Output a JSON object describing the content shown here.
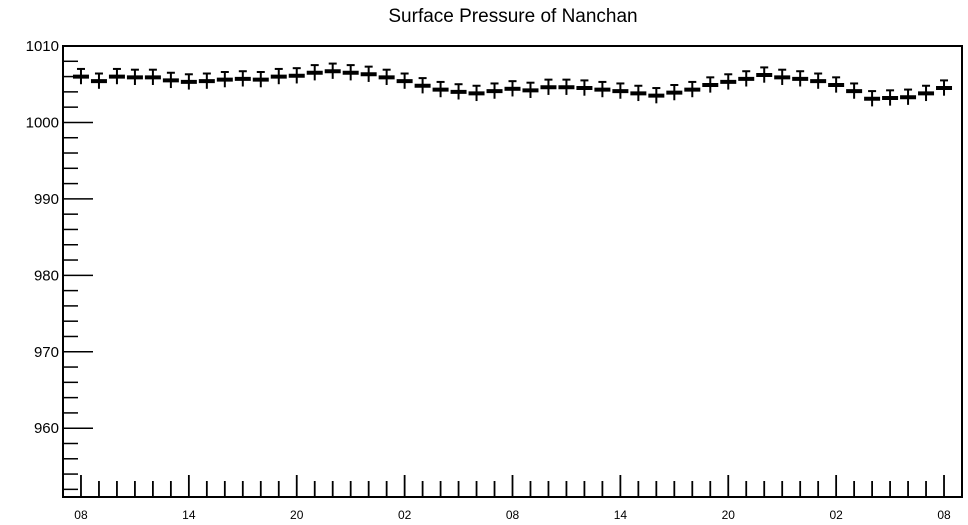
{
  "chart_data": {
    "type": "scatter",
    "title": "Surface Pressure of Nanchan",
    "xlabel": "",
    "ylabel": "",
    "ylim": [
      951,
      1010
    ],
    "yticks": [
      960,
      970,
      980,
      990,
      1000,
      1010
    ],
    "xtick_labels": [
      "08",
      "14",
      "20",
      "02",
      "08",
      "14",
      "20",
      "02",
      "08"
    ],
    "xtick_positions": [
      0,
      6,
      12,
      18,
      24,
      30,
      36,
      42,
      48
    ],
    "xlim": [
      -1,
      49
    ],
    "marker_color": "#000000",
    "error_bar": 1.0,
    "series": [
      {
        "x": [
          0,
          1,
          2,
          3,
          4,
          5,
          6,
          7,
          8,
          9,
          10,
          11,
          12,
          13,
          14,
          15,
          16,
          17,
          18,
          19,
          20,
          21,
          22,
          23,
          24,
          25,
          26,
          27,
          28,
          29,
          30,
          31,
          32,
          33,
          34,
          35,
          36,
          37,
          38,
          39,
          40,
          41,
          42,
          43,
          44,
          45,
          46,
          47,
          48
        ],
        "values": [
          1006.0,
          1005.4,
          1006.0,
          1005.9,
          1005.9,
          1005.5,
          1005.3,
          1005.4,
          1005.6,
          1005.7,
          1005.6,
          1006.0,
          1006.1,
          1006.5,
          1006.7,
          1006.5,
          1006.3,
          1005.9,
          1005.4,
          1004.8,
          1004.3,
          1004.0,
          1003.8,
          1004.1,
          1004.4,
          1004.2,
          1004.6,
          1004.6,
          1004.5,
          1004.3,
          1004.1,
          1003.8,
          1003.5,
          1003.9,
          1004.3,
          1004.9,
          1005.3,
          1005.7,
          1006.2,
          1005.9,
          1005.7,
          1005.4,
          1004.9,
          1004.1,
          1003.1,
          1003.2,
          1003.3,
          1003.8,
          1004.5
        ]
      }
    ]
  }
}
